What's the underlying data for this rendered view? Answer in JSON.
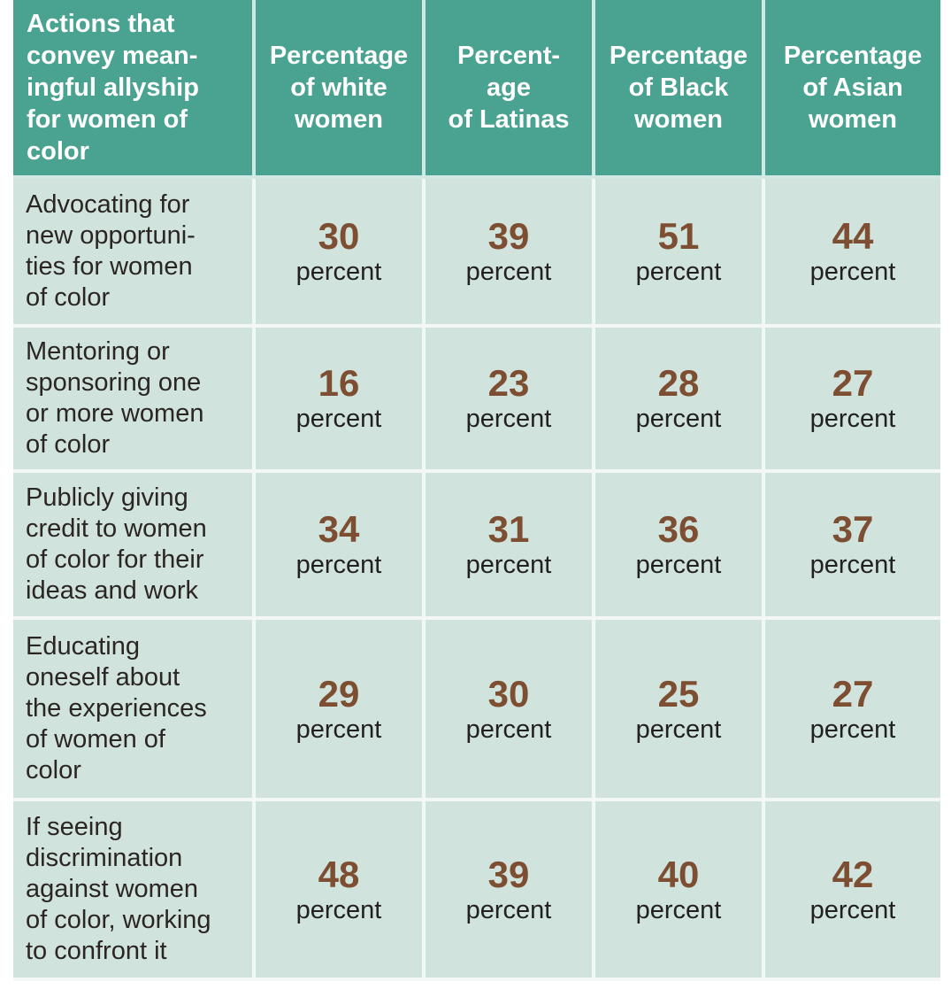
{
  "colors": {
    "header_bg": "#4aa390",
    "body_bg": "#d0e4dd",
    "divider": "#ffffffbf",
    "number": "#7d4e31",
    "header_text": "#ffffff",
    "label_text": "#2b2523",
    "unit_text": "#232021",
    "page_bg": "#ffffff"
  },
  "table": {
    "percent_label": "percent",
    "headers": [
      "Actions that\nconvey mean-\ningful allyship\nfor women of\ncolor",
      "Percentage\nof white\nwomen",
      "Percent-\nage\nof Latinas",
      "Percentage\nof Black\nwomen",
      "Percentage\nof Asian\nwomen"
    ],
    "rows": [
      {
        "label": "Advocating for\nnew opportuni-\nties for women\nof color",
        "values": [
          30,
          39,
          51,
          44
        ]
      },
      {
        "label": "Mentoring or\nsponsoring one\nor more women\nof color",
        "values": [
          16,
          23,
          28,
          27
        ]
      },
      {
        "label": "Publicly giving\ncredit to women\nof color for their\nideas and work",
        "values": [
          34,
          31,
          36,
          37
        ]
      },
      {
        "label": "Educating\noneself about\nthe experiences\nof women of\ncolor",
        "values": [
          29,
          30,
          25,
          27
        ]
      },
      {
        "label": "If seeing\ndiscrimination\nagainst women\nof color, working\nto confront it",
        "values": [
          48,
          39,
          40,
          42
        ]
      }
    ]
  },
  "chart_data": {
    "type": "table",
    "title": "Actions that convey meaningful allyship for women of color",
    "columns": [
      "Percentage of white women",
      "Percentage of Latinas",
      "Percentage of Black women",
      "Percentage of Asian women"
    ],
    "categories": [
      "Advocating for new opportunities for women of color",
      "Mentoring or sponsoring one or more women of color",
      "Publicly giving credit to women of color for their ideas and work",
      "Educating oneself about the experiences of women of color",
      "If seeing discrimination against women of color, working to confront it"
    ],
    "series": [
      {
        "name": "Percentage of white women",
        "values": [
          30,
          16,
          34,
          29,
          48
        ]
      },
      {
        "name": "Percentage of Latinas",
        "values": [
          39,
          23,
          31,
          30,
          39
        ]
      },
      {
        "name": "Percentage of Black women",
        "values": [
          51,
          28,
          36,
          25,
          40
        ]
      },
      {
        "name": "Percentage of Asian women",
        "values": [
          44,
          27,
          37,
          27,
          42
        ]
      }
    ],
    "unit": "percent"
  }
}
